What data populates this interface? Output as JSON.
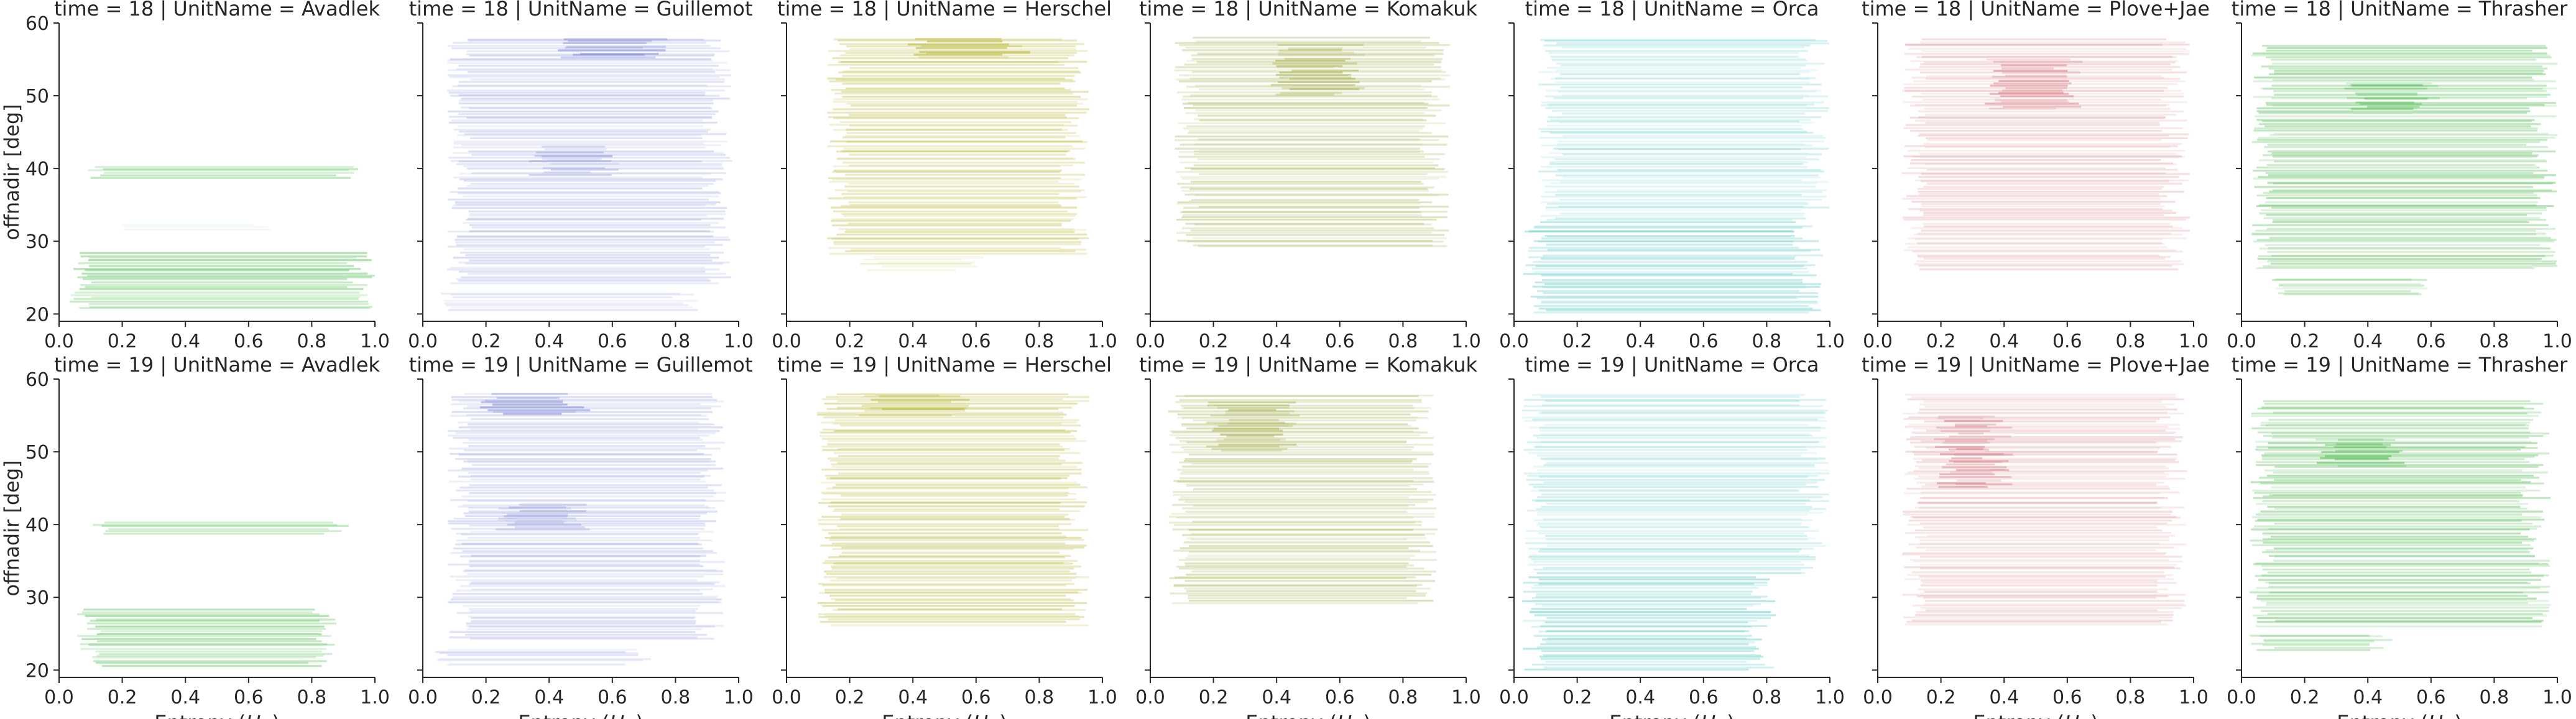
{
  "figure": {
    "ylabel": "offnadir [deg]",
    "xlabel_text": "Entropy (",
    "xlabel_math": "H",
    "xlabel_sub": "w",
    "xlabel_close": ")"
  },
  "chart_data": [
    {
      "type": "heatmap",
      "title": "time = 18 | UnitName = Avadlek",
      "time": 18,
      "unit": "Avadlek",
      "xlim": [
        0.0,
        1.0
      ],
      "ylim": [
        19,
        60
      ],
      "xticks": [
        "0.0",
        "0.2",
        "0.4",
        "0.6",
        "0.8",
        "1.0"
      ],
      "yticks": [
        "20",
        "30",
        "40",
        "50",
        "60"
      ],
      "grid": false,
      "color": "#4bbf4b",
      "bands": [
        {
          "y0": 38.5,
          "y1": 40.5,
          "x0": 0.1,
          "x1": 0.93,
          "density": 0.6
        },
        {
          "y0": 31.5,
          "y1": 32.5,
          "x0": 0.2,
          "x1": 0.65,
          "density": 0.15
        },
        {
          "y0": 20.5,
          "y1": 28.5,
          "x0": 0.05,
          "x1": 0.98,
          "density": 0.75
        }
      ]
    },
    {
      "type": "heatmap",
      "title": "time = 18 | UnitName = Guillemot",
      "time": 18,
      "unit": "Guillemot",
      "xlim": [
        0.0,
        1.0
      ],
      "ylim": [
        19,
        60
      ],
      "xticks": [
        "0.0",
        "0.2",
        "0.4",
        "0.6",
        "0.8",
        "1.0"
      ],
      "yticks": [
        "20",
        "30",
        "40",
        "50",
        "60"
      ],
      "grid": false,
      "color": "#7b86d8",
      "bands": [
        {
          "y0": 24,
          "y1": 58,
          "x0": 0.1,
          "x1": 0.95,
          "density": 0.45
        },
        {
          "y0": 55,
          "y1": 58,
          "x0": 0.45,
          "x1": 0.75,
          "density": 0.9
        },
        {
          "y0": 39,
          "y1": 43,
          "x0": 0.35,
          "x1": 0.6,
          "density": 0.6
        },
        {
          "y0": 20.5,
          "y1": 23,
          "x0": 0.05,
          "x1": 0.85,
          "density": 0.35
        }
      ]
    },
    {
      "type": "heatmap",
      "title": "time = 18 | UnitName = Herschel",
      "time": 18,
      "unit": "Herschel",
      "xlim": [
        0.0,
        1.0
      ],
      "ylim": [
        19,
        60
      ],
      "xticks": [
        "0.0",
        "0.2",
        "0.4",
        "0.6",
        "0.8",
        "1.0"
      ],
      "yticks": [
        "20",
        "30",
        "40",
        "50",
        "60"
      ],
      "grid": false,
      "color": "#b5b22a",
      "bands": [
        {
          "y0": 28,
          "y1": 58,
          "x0": 0.15,
          "x1": 0.93,
          "density": 0.6
        },
        {
          "y0": 55,
          "y1": 58,
          "x0": 0.4,
          "x1": 0.75,
          "density": 0.95
        },
        {
          "y0": 26,
          "y1": 28,
          "x0": 0.25,
          "x1": 0.6,
          "density": 0.35
        }
      ]
    },
    {
      "type": "heatmap",
      "title": "time = 18 | UnitName = Komakuk",
      "time": 18,
      "unit": "Komakuk",
      "xlim": [
        0.0,
        1.0
      ],
      "ylim": [
        19,
        60
      ],
      "xticks": [
        "0.0",
        "0.2",
        "0.4",
        "0.6",
        "0.8",
        "1.0"
      ],
      "yticks": [
        "20",
        "30",
        "40",
        "50",
        "60"
      ],
      "grid": false,
      "color": "#a2ad48",
      "bands": [
        {
          "y0": 29,
          "y1": 58,
          "x0": 0.1,
          "x1": 0.92,
          "density": 0.6
        },
        {
          "y0": 50,
          "y1": 57,
          "x0": 0.4,
          "x1": 0.65,
          "density": 0.95
        }
      ]
    },
    {
      "type": "heatmap",
      "title": "time = 18 | UnitName = Orca",
      "time": 18,
      "unit": "Orca",
      "xlim": [
        0.0,
        1.0
      ],
      "ylim": [
        19,
        60
      ],
      "xticks": [
        "0.0",
        "0.2",
        "0.4",
        "0.6",
        "0.8",
        "1.0"
      ],
      "yticks": [
        "20",
        "30",
        "40",
        "50",
        "60"
      ],
      "grid": false,
      "color": "#3fc1bd",
      "bands": [
        {
          "y0": 33,
          "y1": 58,
          "x0": 0.1,
          "x1": 0.97,
          "density": 0.4
        },
        {
          "y0": 20,
          "y1": 33,
          "x0": 0.05,
          "x1": 0.95,
          "density": 0.6
        }
      ]
    },
    {
      "type": "heatmap",
      "title": "time = 18 | UnitName = Plove+Jae",
      "time": 18,
      "unit": "Plove+Jae",
      "xlim": [
        0.0,
        1.0
      ],
      "ylim": [
        19,
        60
      ],
      "xticks": [
        "0.0",
        "0.2",
        "0.4",
        "0.6",
        "0.8",
        "1.0"
      ],
      "yticks": [
        "20",
        "30",
        "40",
        "50",
        "60"
      ],
      "grid": false,
      "color": "#d97f86",
      "bands": [
        {
          "y0": 26,
          "y1": 58,
          "x0": 0.1,
          "x1": 0.96,
          "density": 0.45
        },
        {
          "y0": 48,
          "y1": 55,
          "x0": 0.35,
          "x1": 0.62,
          "density": 0.95
        }
      ]
    },
    {
      "type": "heatmap",
      "title": "time = 18 | UnitName = Thrasher",
      "time": 18,
      "unit": "Thrasher",
      "xlim": [
        0.0,
        1.0
      ],
      "ylim": [
        19,
        60
      ],
      "xticks": [
        "0.0",
        "0.2",
        "0.4",
        "0.6",
        "0.8",
        "1.0"
      ],
      "yticks": [
        "20",
        "30",
        "40",
        "50",
        "60"
      ],
      "grid": false,
      "color": "#45b845",
      "bands": [
        {
          "y0": 26,
          "y1": 57,
          "x0": 0.05,
          "x1": 0.97,
          "density": 0.65
        },
        {
          "y0": 48,
          "y1": 52,
          "x0": 0.35,
          "x1": 0.6,
          "density": 0.9
        },
        {
          "y0": 22.5,
          "y1": 25,
          "x0": 0.1,
          "x1": 0.6,
          "density": 0.5
        }
      ]
    },
    {
      "type": "heatmap",
      "title": "time = 19 | UnitName = Avadlek",
      "time": 19,
      "unit": "Avadlek",
      "xlim": [
        0.0,
        1.0
      ],
      "ylim": [
        19,
        60
      ],
      "xticks": [
        "0.0",
        "0.2",
        "0.4",
        "0.6",
        "0.8",
        "1.0"
      ],
      "yticks": [
        "20",
        "30",
        "40",
        "50",
        "60"
      ],
      "grid": false,
      "color": "#4bbf4b",
      "bands": [
        {
          "y0": 38.5,
          "y1": 40.5,
          "x0": 0.1,
          "x1": 0.9,
          "density": 0.6
        },
        {
          "y0": 20.5,
          "y1": 28.5,
          "x0": 0.08,
          "x1": 0.85,
          "density": 0.75
        }
      ]
    },
    {
      "type": "heatmap",
      "title": "time = 19 | UnitName = Guillemot",
      "time": 19,
      "unit": "Guillemot",
      "xlim": [
        0.0,
        1.0
      ],
      "ylim": [
        19,
        60
      ],
      "xticks": [
        "0.0",
        "0.2",
        "0.4",
        "0.6",
        "0.8",
        "1.0"
      ],
      "yticks": [
        "20",
        "30",
        "40",
        "50",
        "60"
      ],
      "grid": false,
      "color": "#7b86d8",
      "bands": [
        {
          "y0": 24,
          "y1": 58,
          "x0": 0.1,
          "x1": 0.93,
          "density": 0.45
        },
        {
          "y0": 55,
          "y1": 58,
          "x0": 0.2,
          "x1": 0.5,
          "density": 0.95
        },
        {
          "y0": 39,
          "y1": 43,
          "x0": 0.25,
          "x1": 0.5,
          "density": 0.6
        },
        {
          "y0": 20.5,
          "y1": 23,
          "x0": 0.05,
          "x1": 0.7,
          "density": 0.35
        }
      ]
    },
    {
      "type": "heatmap",
      "title": "time = 19 | UnitName = Herschel",
      "time": 19,
      "unit": "Herschel",
      "xlim": [
        0.0,
        1.0
      ],
      "ylim": [
        19,
        60
      ],
      "xticks": [
        "0.0",
        "0.2",
        "0.4",
        "0.6",
        "0.8",
        "1.0"
      ],
      "yticks": [
        "20",
        "30",
        "40",
        "50",
        "60"
      ],
      "grid": false,
      "color": "#b5b22a",
      "bands": [
        {
          "y0": 26,
          "y1": 58,
          "x0": 0.12,
          "x1": 0.93,
          "density": 0.6
        },
        {
          "y0": 55,
          "y1": 58,
          "x0": 0.25,
          "x1": 0.55,
          "density": 0.95
        }
      ]
    },
    {
      "type": "heatmap",
      "title": "time = 19 | UnitName = Komakuk",
      "time": 19,
      "unit": "Komakuk",
      "xlim": [
        0.0,
        1.0
      ],
      "ylim": [
        19,
        60
      ],
      "xticks": [
        "0.0",
        "0.2",
        "0.4",
        "0.6",
        "0.8",
        "1.0"
      ],
      "yticks": [
        "20",
        "30",
        "40",
        "50",
        "60"
      ],
      "grid": false,
      "color": "#a2ad48",
      "bands": [
        {
          "y0": 29,
          "y1": 58,
          "x0": 0.08,
          "x1": 0.88,
          "density": 0.6
        },
        {
          "y0": 50,
          "y1": 57,
          "x0": 0.2,
          "x1": 0.45,
          "density": 0.95
        }
      ]
    },
    {
      "type": "heatmap",
      "title": "time = 19 | UnitName = Orca",
      "time": 19,
      "unit": "Orca",
      "xlim": [
        0.0,
        1.0
      ],
      "ylim": [
        19,
        60
      ],
      "xticks": [
        "0.0",
        "0.2",
        "0.4",
        "0.6",
        "0.8",
        "1.0"
      ],
      "yticks": [
        "20",
        "30",
        "40",
        "50",
        "60"
      ],
      "grid": false,
      "color": "#3fc1bd",
      "bands": [
        {
          "y0": 33,
          "y1": 58,
          "x0": 0.05,
          "x1": 0.97,
          "density": 0.4
        },
        {
          "y0": 20,
          "y1": 33,
          "x0": 0.05,
          "x1": 0.8,
          "density": 0.6
        }
      ]
    },
    {
      "type": "heatmap",
      "title": "time = 19 | UnitName = Plove+Jae",
      "time": 19,
      "unit": "Plove+Jae",
      "xlim": [
        0.0,
        1.0
      ],
      "ylim": [
        19,
        60
      ],
      "xticks": [
        "0.0",
        "0.2",
        "0.4",
        "0.6",
        "0.8",
        "1.0"
      ],
      "yticks": [
        "20",
        "30",
        "40",
        "50",
        "60"
      ],
      "grid": false,
      "color": "#d97f86",
      "bands": [
        {
          "y0": 26,
          "y1": 58,
          "x0": 0.1,
          "x1": 0.95,
          "density": 0.45
        },
        {
          "y0": 45,
          "y1": 55,
          "x0": 0.2,
          "x1": 0.4,
          "density": 0.95
        }
      ]
    },
    {
      "type": "heatmap",
      "title": "time = 19 | UnitName = Thrasher",
      "time": 19,
      "unit": "Thrasher",
      "xlim": [
        0.0,
        1.0
      ],
      "ylim": [
        19,
        60
      ],
      "xticks": [
        "0.0",
        "0.2",
        "0.4",
        "0.6",
        "0.8",
        "1.0"
      ],
      "yticks": [
        "20",
        "30",
        "40",
        "50",
        "60"
      ],
      "grid": false,
      "color": "#45b845",
      "bands": [
        {
          "y0": 26,
          "y1": 57,
          "x0": 0.05,
          "x1": 0.95,
          "density": 0.65
        },
        {
          "y0": 48,
          "y1": 52,
          "x0": 0.25,
          "x1": 0.5,
          "density": 0.9
        },
        {
          "y0": 22.5,
          "y1": 25,
          "x0": 0.05,
          "x1": 0.45,
          "density": 0.5
        }
      ]
    }
  ]
}
